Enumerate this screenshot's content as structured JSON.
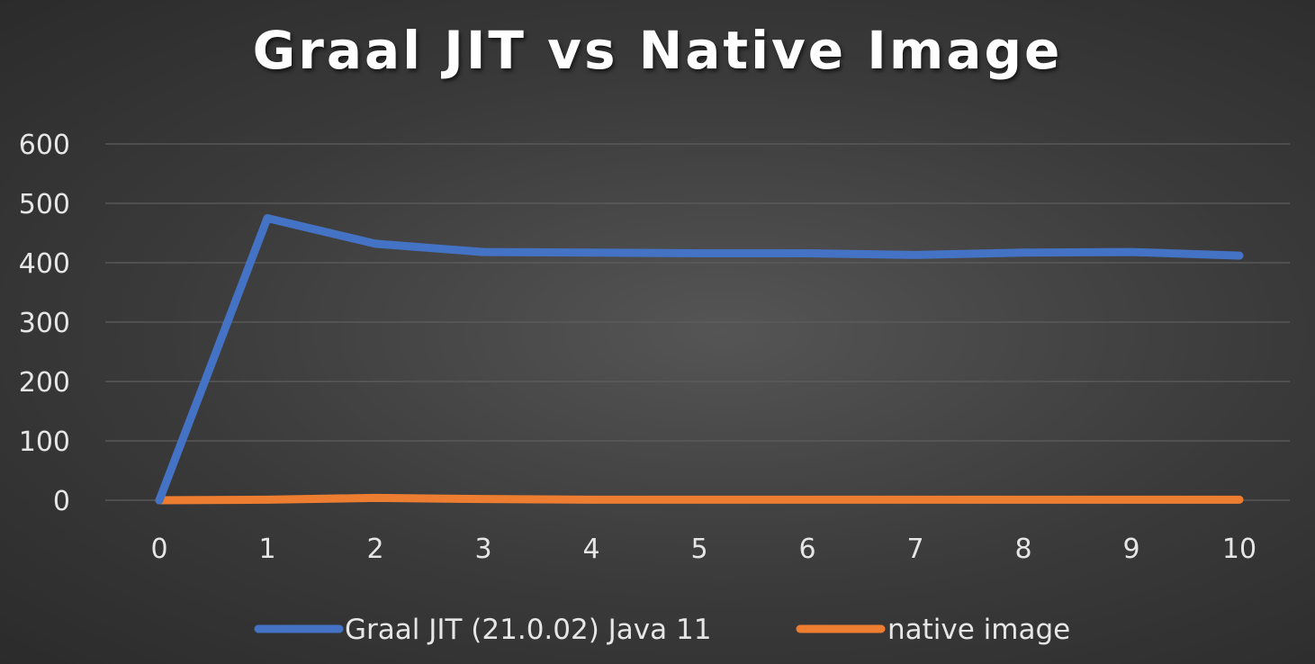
{
  "chart_data": {
    "type": "line",
    "title": "Graal JIT vs Native Image",
    "xlabel": "",
    "ylabel": "",
    "x": [
      0,
      1,
      2,
      3,
      4,
      5,
      6,
      7,
      8,
      9,
      10
    ],
    "ylim": [
      0,
      600
    ],
    "yticks": [
      0,
      100,
      200,
      300,
      400,
      500,
      600
    ],
    "grid": true,
    "legend_position": "bottom",
    "series": [
      {
        "name": "Graal JIT (21.0.02) Java 11",
        "color": "#4472c4",
        "values": [
          0,
          475,
          432,
          418,
          417,
          416,
          416,
          413,
          417,
          418,
          412
        ]
      },
      {
        "name": "native image",
        "color": "#ed7d31",
        "values": [
          0,
          1,
          4,
          2,
          1,
          1,
          1,
          1,
          1,
          1,
          1
        ]
      }
    ]
  }
}
